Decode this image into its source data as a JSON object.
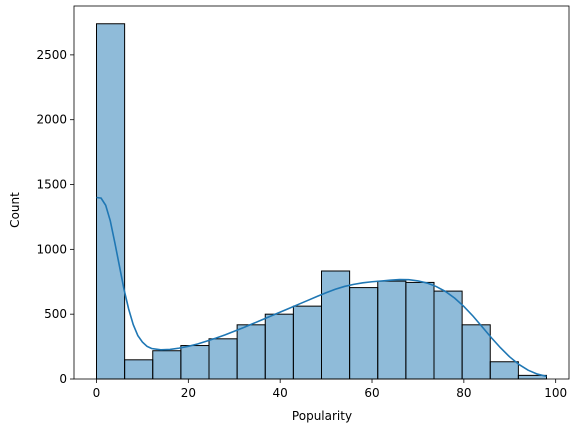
{
  "chart_data": {
    "type": "bar",
    "xlabel": "Popularity",
    "ylabel": "Count",
    "xlim": [
      -4.9,
      102.9
    ],
    "ylim": [
      0,
      2877
    ],
    "xticks": [
      0,
      20,
      40,
      60,
      80,
      100
    ],
    "yticks": [
      0,
      500,
      1000,
      1500,
      2000,
      2500
    ],
    "bins": [
      {
        "x0": 0.0,
        "x1": 6.125,
        "value": 2740
      },
      {
        "x0": 6.125,
        "x1": 12.25,
        "value": 148
      },
      {
        "x0": 12.25,
        "x1": 18.375,
        "value": 218
      },
      {
        "x0": 18.375,
        "x1": 24.5,
        "value": 258
      },
      {
        "x0": 24.5,
        "x1": 30.625,
        "value": 310
      },
      {
        "x0": 30.625,
        "x1": 36.75,
        "value": 418
      },
      {
        "x0": 36.75,
        "x1": 42.875,
        "value": 500
      },
      {
        "x0": 42.875,
        "x1": 49.0,
        "value": 562
      },
      {
        "x0": 49.0,
        "x1": 55.125,
        "value": 833
      },
      {
        "x0": 55.125,
        "x1": 61.25,
        "value": 705
      },
      {
        "x0": 61.25,
        "x1": 67.375,
        "value": 755
      },
      {
        "x0": 67.375,
        "x1": 73.5,
        "value": 745
      },
      {
        "x0": 73.5,
        "x1": 79.625,
        "value": 678
      },
      {
        "x0": 79.625,
        "x1": 85.75,
        "value": 418
      },
      {
        "x0": 85.75,
        "x1": 91.875,
        "value": 133
      },
      {
        "x0": 91.875,
        "x1": 98.0,
        "value": 28
      }
    ],
    "kde": [
      [
        0,
        1400
      ],
      [
        1,
        1395
      ],
      [
        2,
        1340
      ],
      [
        3,
        1220
      ],
      [
        4,
        1050
      ],
      [
        5,
        870
      ],
      [
        6,
        690
      ],
      [
        7,
        540
      ],
      [
        8,
        420
      ],
      [
        9,
        335
      ],
      [
        10,
        285
      ],
      [
        11,
        252
      ],
      [
        12,
        235
      ],
      [
        14,
        225
      ],
      [
        16,
        228
      ],
      [
        18,
        238
      ],
      [
        20,
        252
      ],
      [
        22,
        270
      ],
      [
        24,
        292
      ],
      [
        26,
        315
      ],
      [
        28,
        340
      ],
      [
        30,
        368
      ],
      [
        32,
        396
      ],
      [
        34,
        426
      ],
      [
        36,
        456
      ],
      [
        38,
        486
      ],
      [
        40,
        516
      ],
      [
        42,
        546
      ],
      [
        44,
        576
      ],
      [
        46,
        606
      ],
      [
        48,
        636
      ],
      [
        50,
        665
      ],
      [
        52,
        692
      ],
      [
        54,
        714
      ],
      [
        56,
        730
      ],
      [
        58,
        742
      ],
      [
        60,
        750
      ],
      [
        62,
        756
      ],
      [
        64,
        762
      ],
      [
        66,
        767
      ],
      [
        68,
        766
      ],
      [
        70,
        757
      ],
      [
        72,
        740
      ],
      [
        74,
        713
      ],
      [
        76,
        675
      ],
      [
        78,
        624
      ],
      [
        80,
        560
      ],
      [
        82,
        485
      ],
      [
        84,
        402
      ],
      [
        86,
        318
      ],
      [
        88,
        240
      ],
      [
        90,
        170
      ],
      [
        92,
        112
      ],
      [
        94,
        68
      ],
      [
        96,
        38
      ],
      [
        98,
        20
      ]
    ],
    "colors": {
      "bar_fill": "#1f77b4",
      "bar_fill_opacity": 0.5,
      "bar_edge": "#000000",
      "kde_line": "#1f77b4"
    }
  }
}
